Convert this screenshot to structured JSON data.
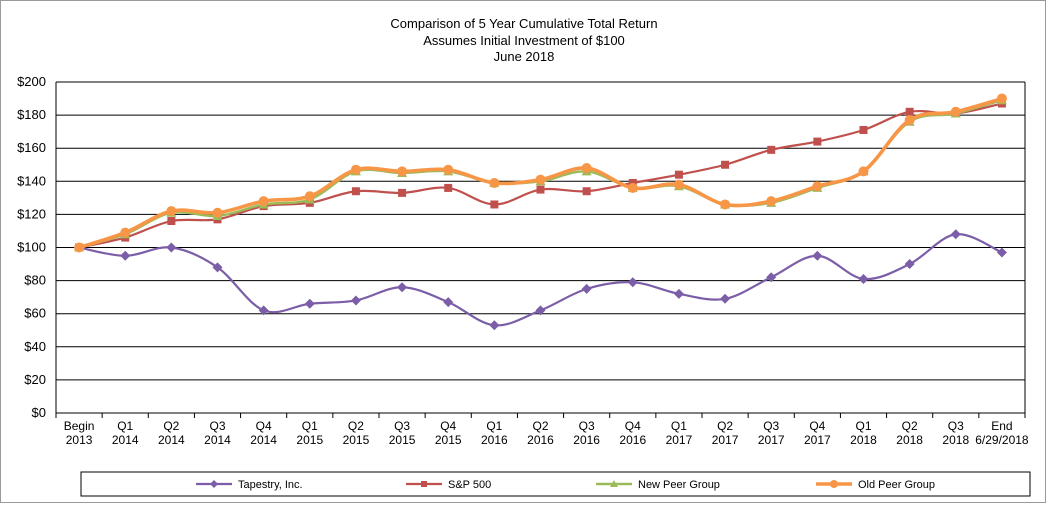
{
  "chart_data": {
    "type": "line",
    "title": [
      "Comparison of 5 Year Cumulative Total Return",
      "Assumes Initial Investment of $100",
      "June 2018"
    ],
    "categories": [
      [
        "Begin",
        "2013"
      ],
      [
        "Q1",
        "2014"
      ],
      [
        "Q2",
        "2014"
      ],
      [
        "Q3",
        "2014"
      ],
      [
        "Q4",
        "2014"
      ],
      [
        "Q1",
        "2015"
      ],
      [
        "Q2",
        "2015"
      ],
      [
        "Q3",
        "2015"
      ],
      [
        "Q4",
        "2015"
      ],
      [
        "Q1",
        "2016"
      ],
      [
        "Q2",
        "2016"
      ],
      [
        "Q3",
        "2016"
      ],
      [
        "Q4",
        "2016"
      ],
      [
        "Q1",
        "2017"
      ],
      [
        "Q2",
        "2017"
      ],
      [
        "Q3",
        "2017"
      ],
      [
        "Q4",
        "2017"
      ],
      [
        "Q1",
        "2018"
      ],
      [
        "Q2",
        "2018"
      ],
      [
        "Q3",
        "2018"
      ],
      [
        "End",
        "6/29/2018"
      ]
    ],
    "ylim": [
      0,
      200
    ],
    "yticks": [
      0,
      20,
      40,
      60,
      80,
      100,
      120,
      140,
      160,
      180,
      200
    ],
    "ytick_labels": [
      "$0",
      "$20",
      "$40",
      "$60",
      "$80",
      "$100",
      "$120",
      "$140",
      "$160",
      "$180",
      "$200"
    ],
    "grid": true,
    "legend_position": "bottom",
    "series": [
      {
        "name": "Tapestry, Inc.",
        "color": "#7b5ea7",
        "marker": "diamond",
        "values": [
          100,
          95,
          100,
          88,
          62,
          66,
          68,
          76,
          67,
          53,
          62,
          75,
          79,
          72,
          69,
          82,
          95,
          81,
          90,
          108,
          97
        ]
      },
      {
        "name": "S&P 500",
        "color": "#c0504d",
        "marker": "square",
        "values": [
          100,
          106,
          116,
          117,
          125,
          127,
          134,
          133,
          136,
          126,
          135,
          134,
          139,
          144,
          150,
          159,
          164,
          171,
          182,
          181,
          187
        ]
      },
      {
        "name": "New Peer Group",
        "color": "#9bbb59",
        "marker": "triangle",
        "values": [
          100,
          108,
          121,
          119,
          126,
          129,
          146,
          145,
          146,
          139,
          140,
          146,
          136,
          137,
          126,
          127,
          136,
          146,
          176,
          181,
          189
        ]
      },
      {
        "name": "Old Peer Group",
        "color": "#f79646",
        "marker": "circle",
        "values": [
          100,
          109,
          122,
          121,
          128,
          131,
          147,
          146,
          147,
          139,
          141,
          148,
          136,
          138,
          126,
          128,
          137,
          146,
          177,
          182,
          190
        ]
      }
    ]
  }
}
